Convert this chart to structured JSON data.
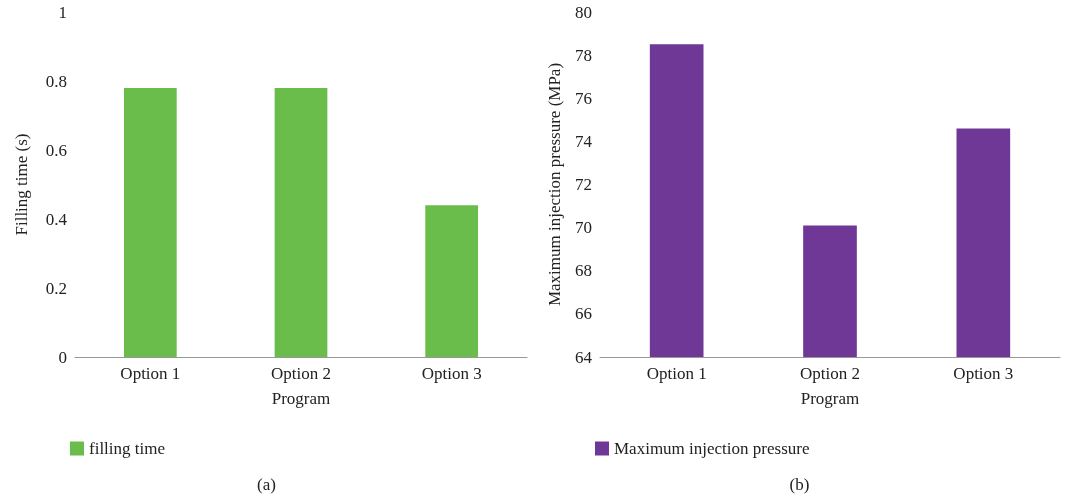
{
  "chart_data": [
    {
      "type": "bar",
      "categories": [
        "Option 1",
        "Option 2",
        "Option 3"
      ],
      "xlabel": "Program",
      "ylabel": "Filling time (s)",
      "series": [
        {
          "name": "filling time",
          "color": "#6abd4b",
          "values": [
            0.78,
            0.78,
            0.44
          ]
        }
      ],
      "ylim": [
        0,
        1
      ],
      "yticks": [
        0,
        0.2,
        0.4,
        0.6,
        0.8,
        1
      ],
      "grid": false,
      "legend": "bottom left",
      "annotations": [
        "(a)"
      ]
    },
    {
      "type": "bar",
      "categories": [
        "Option 1",
        "Option 2",
        "Option 3"
      ],
      "xlabel": "Program",
      "ylabel": "Maximum injection pressure (MPa)",
      "series": [
        {
          "name": "Maximum injection pressure",
          "color": "#6f3896",
          "values": [
            78.5,
            70.1,
            74.6
          ]
        }
      ],
      "ylim": [
        64,
        80
      ],
      "yticks": [
        64,
        66,
        68,
        70,
        72,
        74,
        76,
        78,
        80
      ],
      "grid": false,
      "legend": "bottom left",
      "annotations": [
        "(b)"
      ]
    }
  ]
}
